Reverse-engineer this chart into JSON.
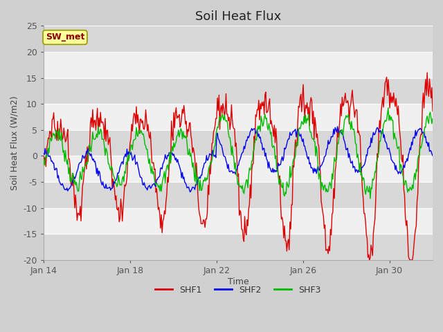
{
  "title": "Soil Heat Flux",
  "xlabel": "Time",
  "ylabel": "Soil Heat Flux (W/m2)",
  "ylim": [
    -20,
    25
  ],
  "yticks": [
    -20,
    -15,
    -10,
    -5,
    0,
    5,
    10,
    15,
    20,
    25
  ],
  "xtick_labels": [
    "Jan 14",
    "Jan 18",
    "Jan 22",
    "Jan 26",
    "Jan 30"
  ],
  "xtick_positions": [
    0,
    4,
    8,
    12,
    16
  ],
  "legend_labels": [
    "SHF1",
    "SHF2",
    "SHF3"
  ],
  "line_colors": [
    "#dd0000",
    "#0000ee",
    "#00bb00"
  ],
  "annotation_text": "SW_met",
  "annotation_bg": "#ffff99",
  "annotation_border": "#999900",
  "annotation_text_color": "#880000",
  "fig_bg_color": "#d0d0d0",
  "plot_bg_color": "#e8e8e8",
  "band_light": "#f0f0f0",
  "band_dark": "#d8d8d8",
  "title_fontsize": 13,
  "label_fontsize": 9,
  "tick_fontsize": 9
}
